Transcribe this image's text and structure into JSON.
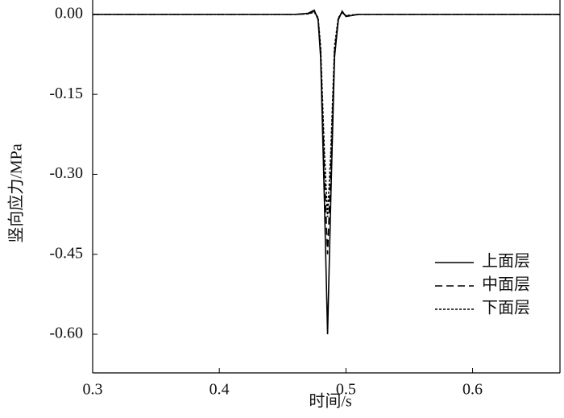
{
  "chart_data": {
    "type": "line",
    "xlabel": "时间/s",
    "ylabel": "竖向应力/MPa",
    "x": [
      0.3,
      0.46,
      0.47,
      0.475,
      0.478,
      0.48,
      0.483,
      0.4855,
      0.488,
      0.491,
      0.494,
      0.497,
      0.5,
      0.51,
      0.52,
      0.669
    ],
    "series": [
      {
        "name": "上面层",
        "color": "#000000",
        "dash": "solid",
        "values": [
          0,
          0,
          0.002,
          0.008,
          -0.01,
          -0.08,
          -0.35,
          -0.6,
          -0.35,
          -0.08,
          -0.01,
          0.006,
          -0.004,
          0,
          0,
          0
        ]
      },
      {
        "name": "中面层",
        "color": "#000000",
        "dash": "dashed",
        "values": [
          0,
          0,
          0.001,
          0.006,
          -0.008,
          -0.07,
          -0.3,
          -0.45,
          -0.3,
          -0.07,
          -0.008,
          0.004,
          -0.003,
          0,
          0,
          0
        ]
      },
      {
        "name": "下面层",
        "color": "#000000",
        "dash": "dotted",
        "values": [
          0,
          0,
          0.001,
          0.004,
          -0.006,
          -0.06,
          -0.26,
          -0.38,
          -0.26,
          -0.06,
          -0.006,
          0.003,
          -0.002,
          0,
          0,
          0
        ]
      }
    ],
    "xlim": [
      0.3,
      0.669
    ],
    "xticks": [
      0.3,
      0.4,
      0.5,
      0.6
    ],
    "ylim": [
      -0.6725,
      0.027
    ],
    "yticks": [
      {
        "value": 0,
        "label": "0.00"
      },
      {
        "value": -0.15,
        "label": "-0.15"
      },
      {
        "value": -0.3,
        "label": "-0.30"
      },
      {
        "value": -0.45,
        "label": "-0.45"
      },
      {
        "value": -0.6,
        "label": "-0.60"
      }
    ],
    "legend": "lower right"
  }
}
